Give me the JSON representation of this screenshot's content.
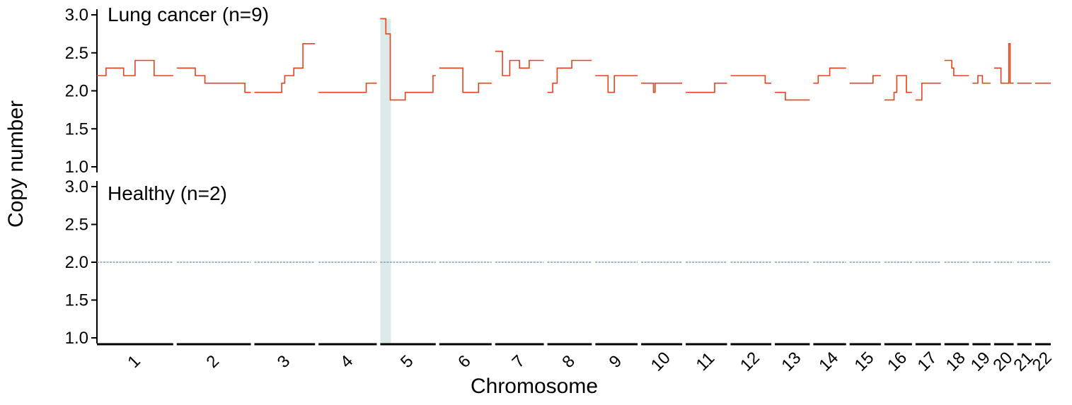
{
  "chart_data": {
    "type": "line",
    "xlabel": "Chromosome",
    "ylabel": "Copy number",
    "ylim": [
      1.0,
      3.0
    ],
    "yticks": [
      "1.0",
      "1.5",
      "2.0",
      "2.5",
      "3.0"
    ],
    "grid": false,
    "highlight": {
      "chromosome": "5",
      "position": "start",
      "color": "#dceaea"
    },
    "chromosomes": [
      "1",
      "2",
      "3",
      "4",
      "5",
      "6",
      "7",
      "8",
      "9",
      "10",
      "11",
      "12",
      "13",
      "14",
      "15",
      "16",
      "17",
      "18",
      "19",
      "20",
      "21",
      "22"
    ],
    "chromosome_sizes_mb": [
      249,
      242,
      198,
      190,
      181,
      171,
      159,
      145,
      138,
      134,
      135,
      133,
      114,
      107,
      102,
      90,
      83,
      80,
      59,
      64,
      47,
      51
    ],
    "panels": [
      {
        "title": "Lung cancer (n=9)",
        "color": "#e8411c",
        "segments": {
          "1": [
            [
              0,
              0.12,
              2.2
            ],
            [
              0.12,
              0.35,
              2.3
            ],
            [
              0.35,
              0.5,
              2.2
            ],
            [
              0.5,
              0.75,
              2.4
            ],
            [
              0.75,
              1,
              2.2
            ]
          ],
          "2": [
            [
              0,
              0.25,
              2.3
            ],
            [
              0.25,
              0.38,
              2.2
            ],
            [
              0.38,
              0.92,
              2.1
            ],
            [
              0.92,
              1,
              1.98
            ]
          ],
          "3": [
            [
              0,
              0.45,
              1.98
            ],
            [
              0.45,
              0.5,
              2.1
            ],
            [
              0.5,
              0.65,
              2.2
            ],
            [
              0.65,
              0.8,
              2.3
            ],
            [
              0.8,
              1,
              2.62
            ]
          ],
          "4": [
            [
              0,
              0.82,
              1.98
            ],
            [
              0.82,
              1,
              2.1
            ]
          ],
          "5": [
            [
              0,
              0.1,
              2.95
            ],
            [
              0.1,
              0.18,
              2.75
            ],
            [
              0.18,
              0.25,
              1.88
            ],
            [
              0.25,
              0.45,
              1.88
            ],
            [
              0.45,
              0.95,
              1.98
            ],
            [
              0.95,
              1,
              2.2
            ]
          ],
          "6": [
            [
              0,
              0.45,
              2.3
            ],
            [
              0.45,
              0.75,
              1.98
            ],
            [
              0.75,
              1,
              2.1
            ]
          ],
          "7": [
            [
              0,
              0.15,
              2.52
            ],
            [
              0.15,
              0.3,
              2.2
            ],
            [
              0.3,
              0.5,
              2.4
            ],
            [
              0.5,
              0.7,
              2.3
            ],
            [
              0.7,
              0.85,
              2.4
            ],
            [
              0.85,
              1,
              2.4
            ]
          ],
          "8": [
            [
              0,
              0.12,
              1.98
            ],
            [
              0.12,
              0.22,
              2.1
            ],
            [
              0.22,
              0.55,
              2.3
            ],
            [
              0.55,
              1,
              2.4
            ]
          ],
          "9": [
            [
              0,
              0.3,
              2.2
            ],
            [
              0.3,
              0.45,
              1.98
            ],
            [
              0.45,
              1,
              2.2
            ]
          ],
          "10": [
            [
              0,
              0.3,
              2.1
            ],
            [
              0.3,
              0.34,
              1.98
            ],
            [
              0.34,
              1,
              2.1
            ]
          ],
          "11": [
            [
              0,
              0.7,
              1.98
            ],
            [
              0.7,
              1,
              2.1
            ]
          ],
          "12": [
            [
              0,
              0.85,
              2.2
            ],
            [
              0.85,
              1,
              2.1
            ]
          ],
          "13": [
            [
              0,
              0.3,
              1.98
            ],
            [
              0.3,
              1,
              1.88
            ]
          ],
          "14": [
            [
              0,
              0.15,
              2.1
            ],
            [
              0.15,
              0.5,
              2.2
            ],
            [
              0.5,
              1,
              2.3
            ]
          ],
          "15": [
            [
              0,
              0.75,
              2.1
            ],
            [
              0.75,
              1,
              2.2
            ]
          ],
          "16": [
            [
              0,
              0.35,
              1.88
            ],
            [
              0.35,
              0.45,
              1.98
            ],
            [
              0.45,
              0.8,
              2.2
            ],
            [
              0.8,
              1,
              1.98
            ]
          ],
          "17": [
            [
              0,
              0.25,
              1.88
            ],
            [
              0.25,
              1,
              2.1
            ]
          ],
          "18": [
            [
              0,
              0.3,
              2.4
            ],
            [
              0.3,
              0.38,
              2.3
            ],
            [
              0.38,
              1,
              2.2
            ]
          ],
          "19": [
            [
              0,
              0.3,
              2.1
            ],
            [
              0.3,
              0.55,
              2.2
            ],
            [
              0.55,
              1,
              2.1
            ]
          ],
          "20": [
            [
              0,
              0.35,
              2.3
            ],
            [
              0.35,
              0.5,
              2.1
            ],
            [
              0.5,
              0.75,
              2.1
            ],
            [
              0.75,
              0.82,
              2.62
            ],
            [
              0.82,
              1,
              2.1
            ]
          ],
          "21": [
            [
              0,
              1,
              2.1
            ]
          ],
          "22": [
            [
              0,
              1,
              2.1
            ]
          ]
        }
      },
      {
        "title": "Healthy (n=2)",
        "color": "#7a9ac2",
        "segments": {
          "1": [
            [
              0,
              1,
              2.0
            ]
          ],
          "2": [
            [
              0,
              1,
              2.0
            ]
          ],
          "3": [
            [
              0,
              1,
              2.0
            ]
          ],
          "4": [
            [
              0,
              1,
              2.0
            ]
          ],
          "5": [
            [
              0,
              1,
              2.0
            ]
          ],
          "6": [
            [
              0,
              1,
              2.0
            ]
          ],
          "7": [
            [
              0,
              1,
              2.0
            ]
          ],
          "8": [
            [
              0,
              1,
              2.0
            ]
          ],
          "9": [
            [
              0,
              1,
              2.0
            ]
          ],
          "10": [
            [
              0,
              1,
              2.0
            ]
          ],
          "11": [
            [
              0,
              1,
              2.0
            ]
          ],
          "12": [
            [
              0,
              1,
              2.0
            ]
          ],
          "13": [
            [
              0,
              1,
              2.0
            ]
          ],
          "14": [
            [
              0,
              1,
              2.0
            ]
          ],
          "15": [
            [
              0,
              1,
              2.0
            ]
          ],
          "16": [
            [
              0,
              1,
              2.0
            ]
          ],
          "17": [
            [
              0,
              1,
              2.0
            ]
          ],
          "18": [
            [
              0,
              1,
              2.0
            ]
          ],
          "19": [
            [
              0,
              1,
              2.0
            ]
          ],
          "20": [
            [
              0,
              1,
              2.0
            ]
          ],
          "21": [
            [
              0,
              1,
              2.0
            ]
          ],
          "22": [
            [
              0,
              1,
              2.0
            ]
          ]
        }
      }
    ]
  }
}
